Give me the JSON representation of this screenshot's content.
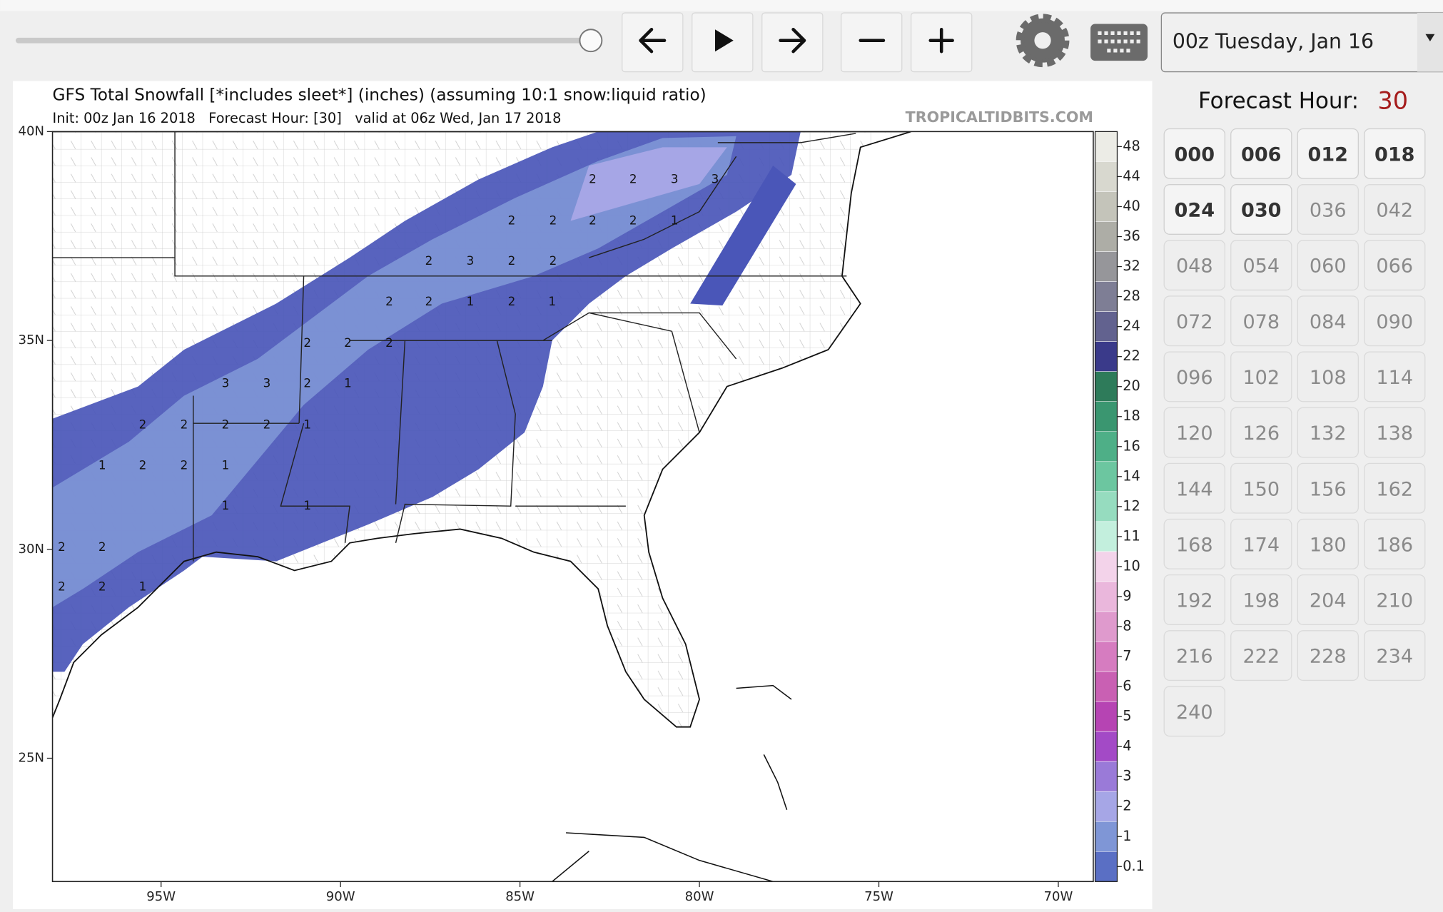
{
  "toolbar": {
    "date_select": "00z Tuesday, Jan 16"
  },
  "map": {
    "title": "GFS Total Snowfall [*includes sleet*] (inches) (assuming 10:1 snow:liquid ratio)",
    "subtitle": "Init: 00z Jan 16 2018   Forecast Hour: [30]   valid at 06z Wed, Jan 17 2018",
    "watermark": "TROPICALTIDBITS.COM",
    "lat_labels": [
      "40N",
      "35N",
      "30N",
      "25N"
    ],
    "lon_labels": [
      "95W",
      "90W",
      "85W",
      "80W",
      "75W",
      "70W"
    ],
    "colorbar_labels": [
      "48",
      "44",
      "40",
      "36",
      "32",
      "28",
      "24",
      "22",
      "20",
      "18",
      "16",
      "14",
      "12",
      "11",
      "10",
      "9",
      "8",
      "7",
      "6",
      "5",
      "4",
      "3",
      "2",
      "1",
      "0.1"
    ],
    "colorbar_colors": [
      "#ecece6",
      "#d8d8cf",
      "#c4c4ba",
      "#adada6",
      "#96969a",
      "#7e7e95",
      "#62628f",
      "#3a3a8a",
      "#2e7b5a",
      "#3a9670",
      "#4eaf87",
      "#6cc6a0",
      "#96dcbf",
      "#c3efdd",
      "#f3d3ea",
      "#eab7dc",
      "#df9acd",
      "#d67cc0",
      "#c960b3",
      "#b644b3",
      "#a34ac6",
      "#9a7ad8",
      "#a6a6e6",
      "#7f96d6",
      "#5a6fc4"
    ],
    "contour_labels": [
      "2",
      "2",
      "3",
      "3",
      "2",
      "2",
      "2",
      "2",
      "1",
      "2",
      "3",
      "2",
      "2",
      "2",
      "2",
      "1",
      "2",
      "1",
      "2",
      "2",
      "2",
      "3",
      "3",
      "2",
      "1",
      "2",
      "2",
      "2",
      "2",
      "1",
      "1",
      "2",
      "2",
      "1",
      "1",
      "1",
      "2",
      "2",
      "2",
      "2",
      "1"
    ]
  },
  "sidebar": {
    "forecast_hour_label": "Forecast Hour:",
    "forecast_hour_value": "30",
    "hours": [
      "000",
      "006",
      "012",
      "018",
      "024",
      "030",
      "036",
      "042",
      "048",
      "054",
      "060",
      "066",
      "072",
      "078",
      "084",
      "090",
      "096",
      "102",
      "108",
      "114",
      "120",
      "126",
      "132",
      "138",
      "144",
      "150",
      "156",
      "162",
      "168",
      "174",
      "180",
      "186",
      "192",
      "198",
      "204",
      "210",
      "216",
      "222",
      "228",
      "234",
      "240"
    ]
  }
}
